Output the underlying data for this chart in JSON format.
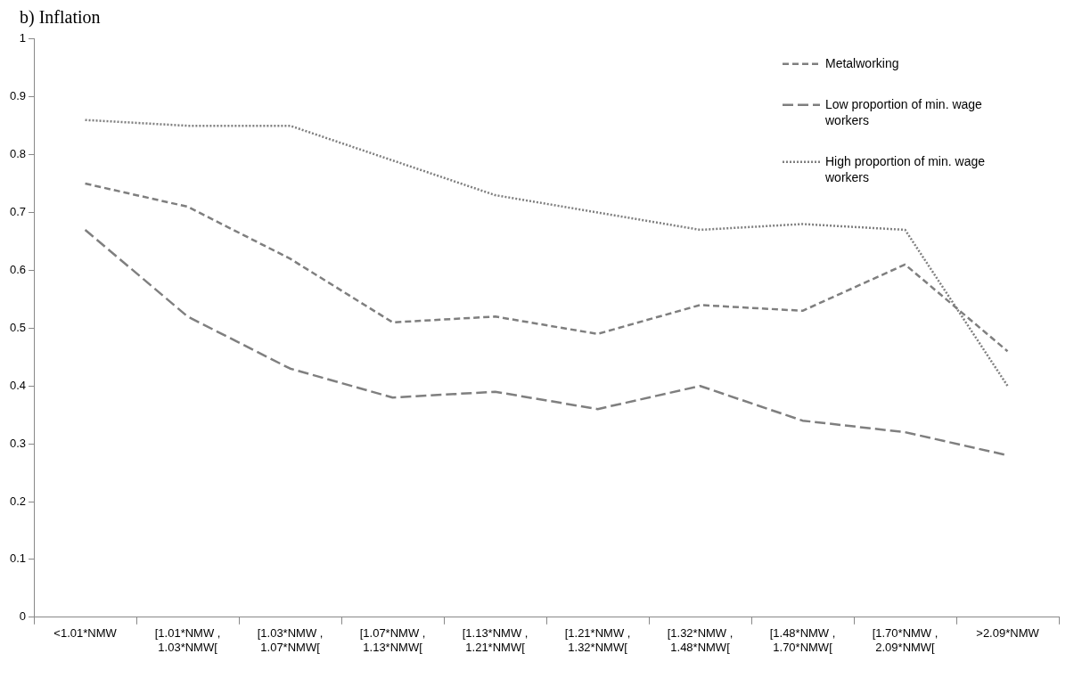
{
  "chart_data": {
    "type": "line",
    "title": "b)  Inflation",
    "categories": [
      "<1.01*NMW",
      "[1.01*NMW , 1.03*NMW[",
      "[1.03*NMW , 1.07*NMW[",
      "[1.07*NMW , 1.13*NMW[",
      "[1.13*NMW , 1.21*NMW[",
      "[1.21*NMW , 1.32*NMW[",
      "[1.32*NMW , 1.48*NMW[",
      "[1.48*NMW , 1.70*NMW[",
      "[1.70*NMW , 2.09*NMW[",
      ">2.09*NMW"
    ],
    "series": [
      {
        "name": "Metalworking",
        "color": "#7f7f7f",
        "line_style": "dashed",
        "values": [
          0.75,
          0.71,
          0.62,
          0.51,
          0.52,
          0.49,
          0.54,
          0.53,
          0.61,
          0.46
        ]
      },
      {
        "name": "Low proportion of min. wage workers",
        "color": "#7f7f7f",
        "line_style": "dashed",
        "values": [
          0.67,
          0.52,
          0.43,
          0.38,
          0.39,
          0.36,
          0.4,
          0.34,
          0.32,
          0.28
        ]
      },
      {
        "name": "High proportion of min. wage workers",
        "color": "#7f7f7f",
        "line_style": "dotted",
        "values": [
          0.86,
          0.85,
          0.85,
          0.79,
          0.73,
          0.7,
          0.67,
          0.68,
          0.67,
          0.4
        ]
      }
    ],
    "ylim": [
      0,
      1
    ],
    "yticks": [
      0,
      0.1,
      0.2,
      0.3,
      0.4,
      0.5,
      0.6,
      0.7,
      0.8,
      0.9,
      1
    ],
    "grid": false,
    "legend": "top right",
    "marker": "none"
  }
}
